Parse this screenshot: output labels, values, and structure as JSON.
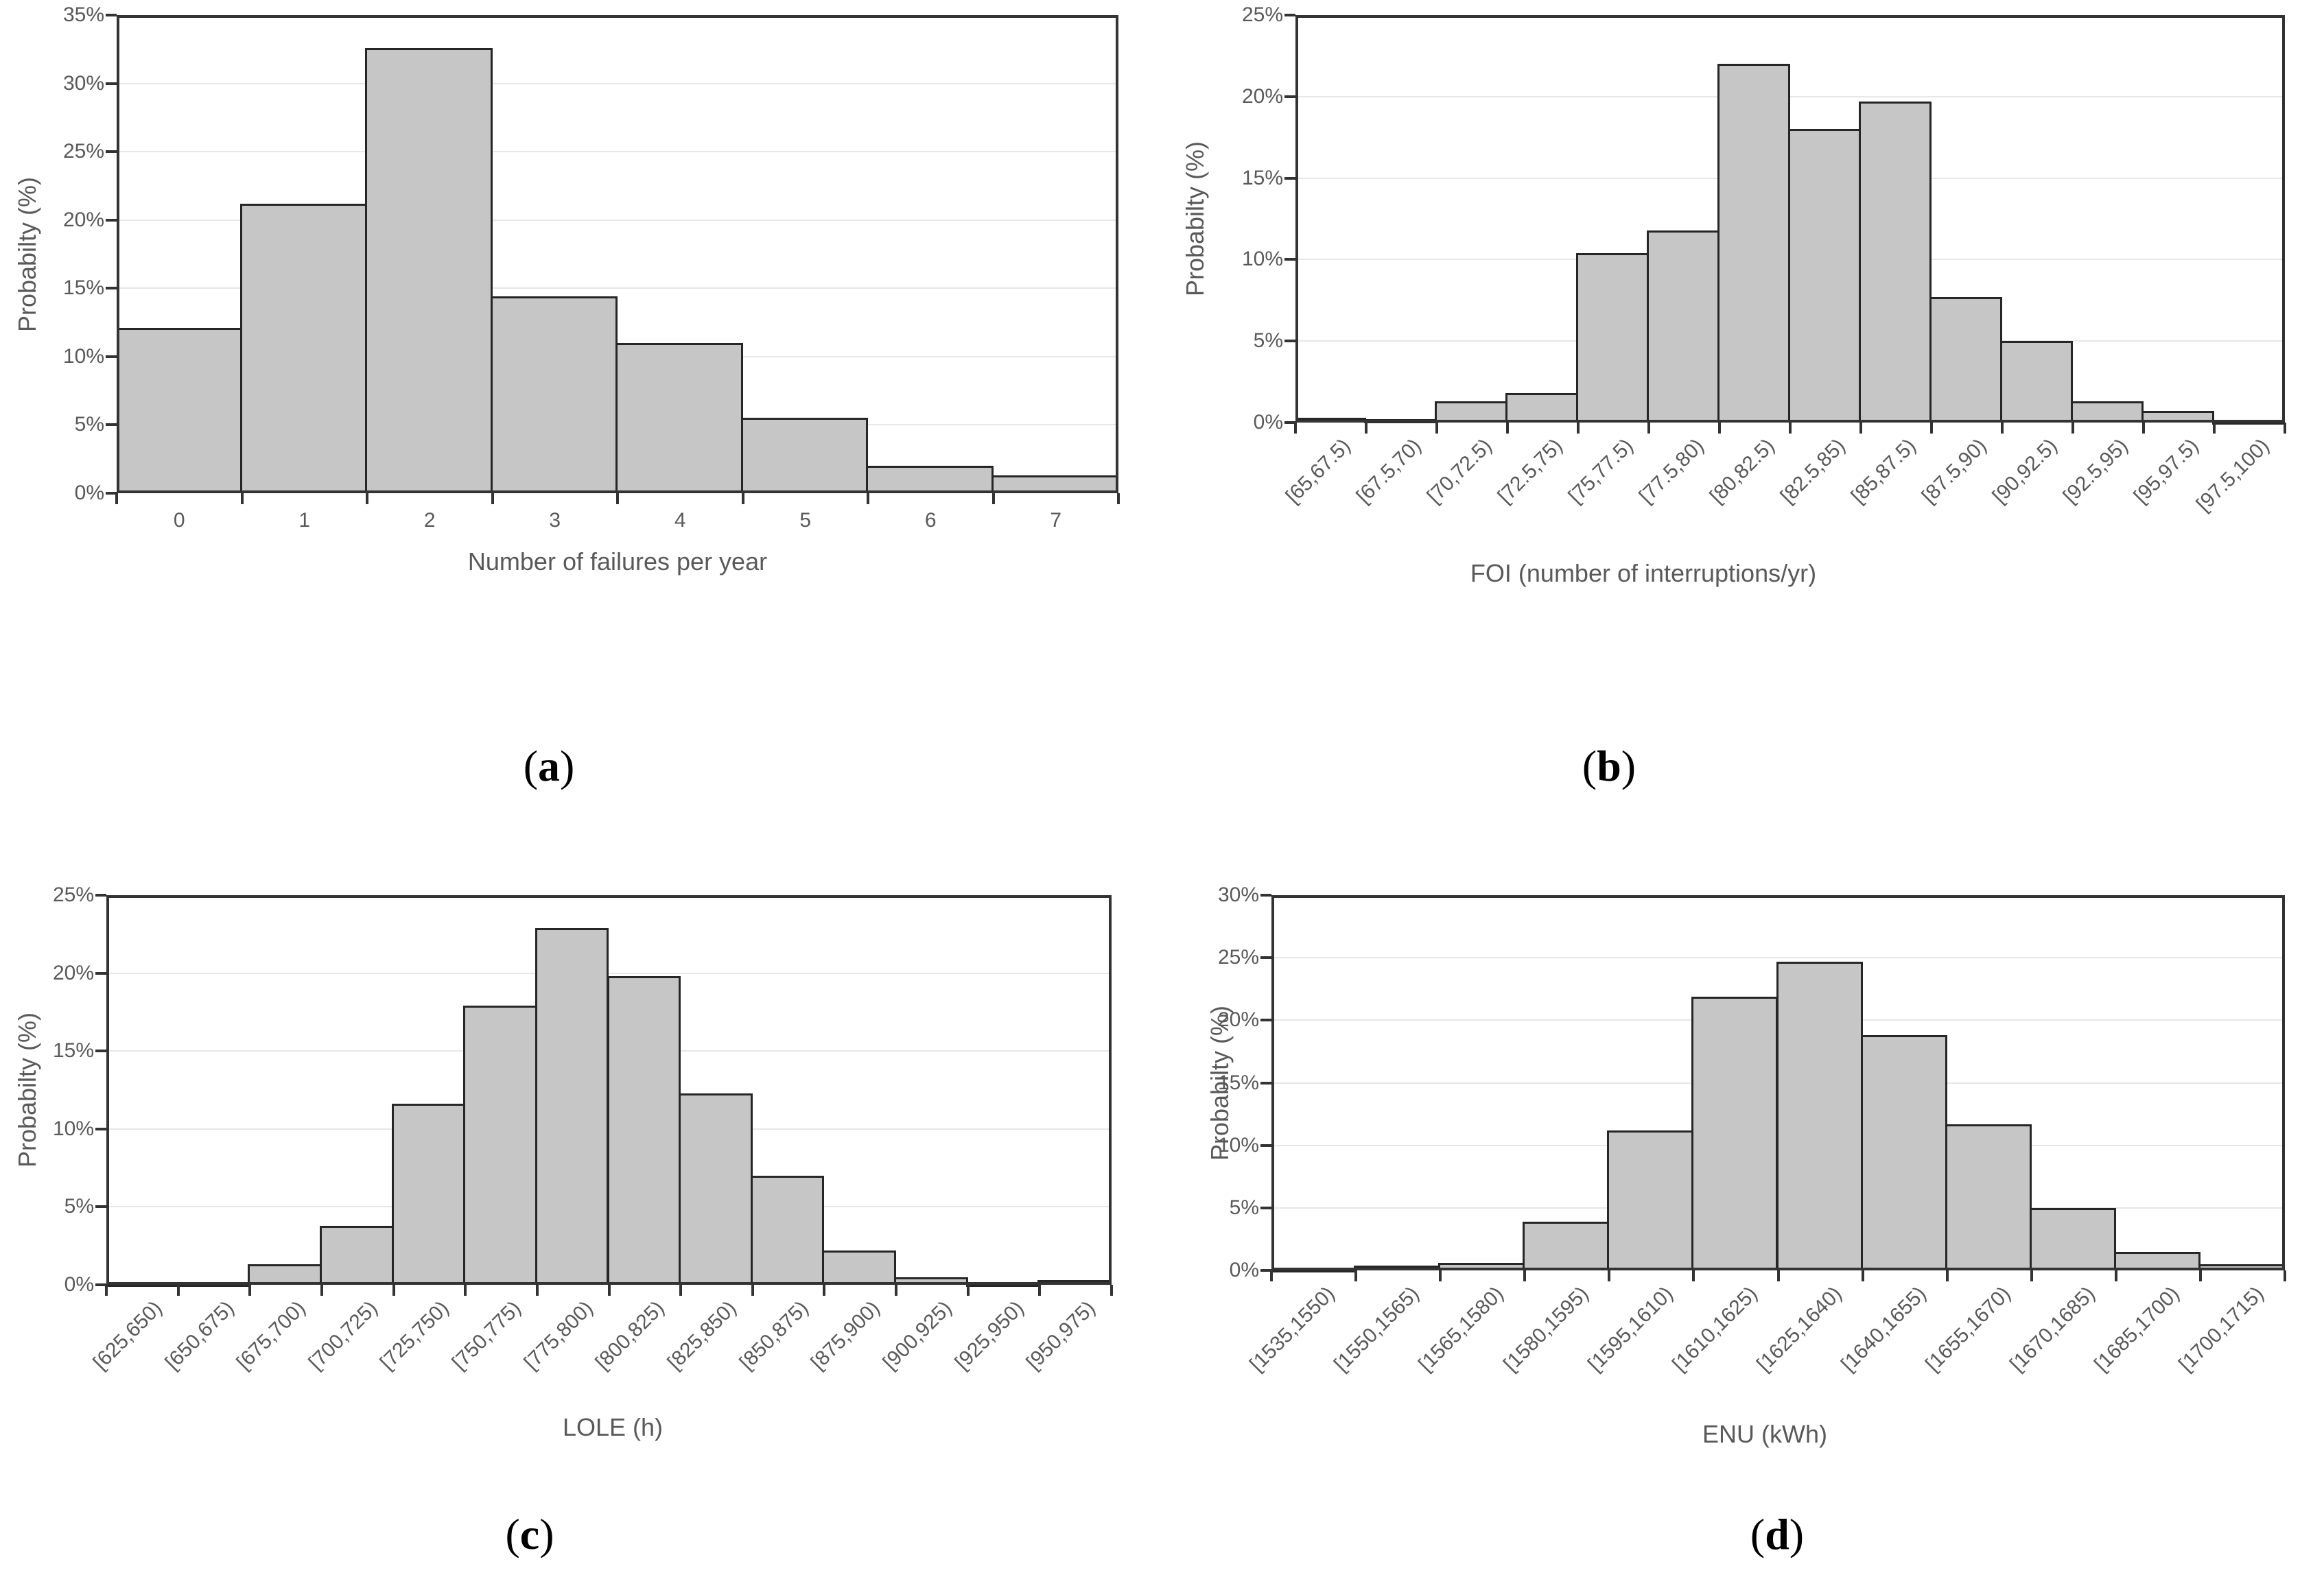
{
  "colors": {
    "bar_fill": "#c6c6c6",
    "bar_border": "#262626",
    "plot_border": "#333333",
    "gridline": "#e7e7e7",
    "axis_text": "#595959",
    "caption": "#000000",
    "background": "#ffffff"
  },
  "chart_data": [
    {
      "id": "a",
      "type": "bar",
      "caption": "a",
      "title": "",
      "xlabel": "Number of failures per year",
      "ylabel": "Probabilty (%)",
      "categories": [
        "0",
        "1",
        "2",
        "3",
        "4",
        "5",
        "6",
        "7"
      ],
      "values": [
        12.1,
        21.2,
        32.6,
        14.4,
        11.0,
        5.5,
        2.0,
        1.3
      ],
      "ylim": [
        0,
        35
      ],
      "ytick_step": 5,
      "ytick_suffix": "%",
      "rotated_labels": false,
      "grid": true,
      "legend": "none"
    },
    {
      "id": "b",
      "type": "bar",
      "caption": "b",
      "title": "",
      "xlabel": "FOI (number of interruptions/yr)",
      "ylabel": "Probabilty (%)",
      "categories": [
        "[65,67.5)",
        "[67.5,70)",
        "[70,72.5)",
        "[72.5,75)",
        "[75,77.5)",
        "[77.5,80)",
        "[80,82.5)",
        "[82.5,85)",
        "[85,87.5)",
        "[87.5,90)",
        "[90,92.5)",
        "[92.5,95)",
        "[95,97.5)",
        "[97.5,100)"
      ],
      "values": [
        0.3,
        0.2,
        1.3,
        1.8,
        10.4,
        11.8,
        22.0,
        18.0,
        19.7,
        7.7,
        5.0,
        1.3,
        0.7,
        0.1
      ],
      "ylim": [
        0,
        25
      ],
      "ytick_step": 5,
      "ytick_suffix": "%",
      "rotated_labels": true,
      "grid": true,
      "legend": "none"
    },
    {
      "id": "c",
      "type": "bar",
      "caption": "c",
      "title": "",
      "xlabel": "LOLE (h)",
      "ylabel": "Probabilty (%)",
      "categories": [
        "[625,650)",
        "[650,675)",
        "[675,700)",
        "[700,725)",
        "[725,750)",
        "[750,775)",
        "[775,800)",
        "[800,825)",
        "[825,850)",
        "[850,875)",
        "[875,900)",
        "[900,925)",
        "[925,950)",
        "[950,975)"
      ],
      "values": [
        0.05,
        0.15,
        1.3,
        3.8,
        11.6,
        17.9,
        22.9,
        19.8,
        12.3,
        7.0,
        2.2,
        0.5,
        0.05,
        0.3
      ],
      "ylim": [
        0,
        25
      ],
      "ytick_step": 5,
      "ytick_suffix": "%",
      "rotated_labels": true,
      "grid": true,
      "legend": "none"
    },
    {
      "id": "d",
      "type": "bar",
      "caption": "d",
      "title": "",
      "xlabel": "ENU (kWh)",
      "ylabel": "Probabilty (%)",
      "categories": [
        "[1535,1550)",
        "[1550,1565)",
        "[1565,1580)",
        "[1580,1595)",
        "[1595,1610)",
        "[1610,1625)",
        "[1625,1640)",
        "[1640,1655)",
        "[1655,1670)",
        "[1670,1685)",
        "[1685,1700)",
        "[1700,1715)"
      ],
      "values": [
        0.1,
        0.4,
        0.6,
        3.9,
        11.2,
        21.9,
        24.7,
        18.8,
        11.7,
        5.0,
        1.5,
        0.5
      ],
      "ylim": [
        0,
        30
      ],
      "ytick_step": 5,
      "ytick_suffix": "%",
      "rotated_labels": true,
      "grid": true,
      "legend": "none"
    }
  ]
}
